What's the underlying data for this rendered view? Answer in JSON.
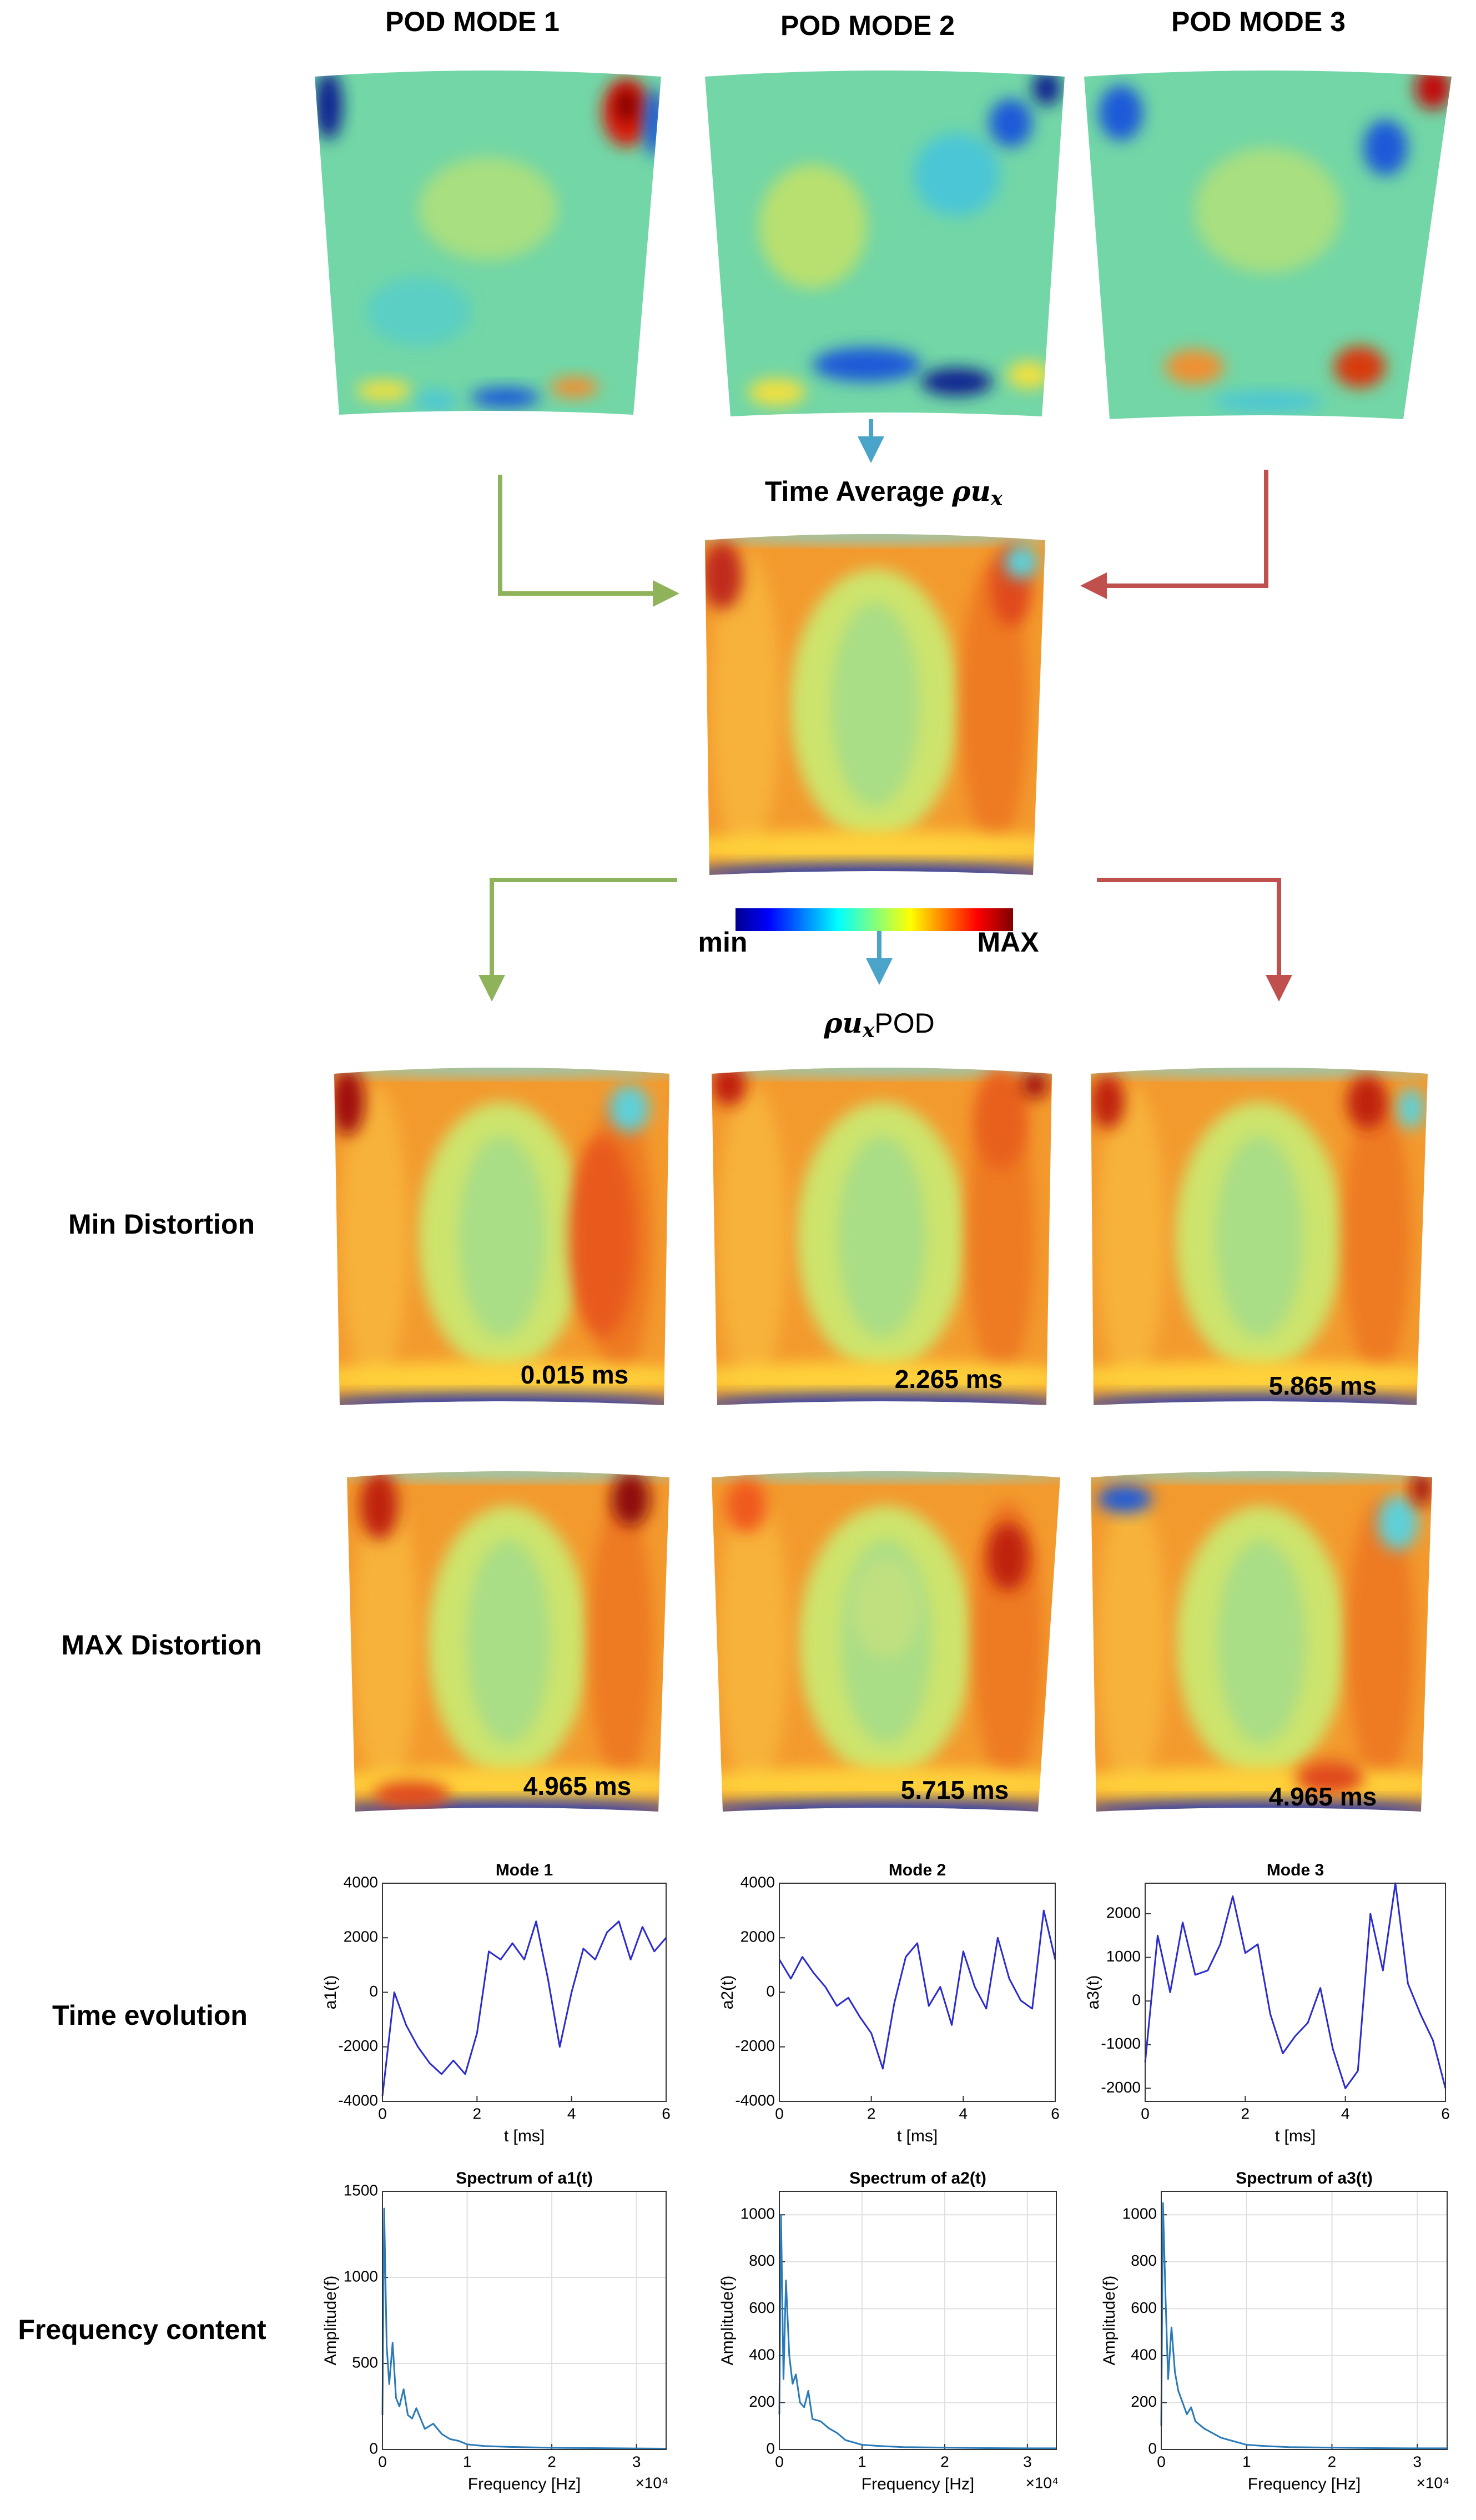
{
  "figure": {
    "top_titles": [
      "POD MODE 1",
      "POD MODE 2",
      "POD MODE 3"
    ],
    "center_title_text": "Time Average",
    "center_title_symbol": "ρu",
    "center_title_sub": "x",
    "colorbar_min": "min",
    "colorbar_max": "MAX",
    "pod_title_symbol": "ρu",
    "pod_title_sub": "x",
    "pod_title_text": "POD",
    "row_labels": [
      "Min Distortion",
      "MAX Distortion",
      "Time evolution",
      "Frequency content"
    ],
    "min_times": [
      "0.015 ms",
      "2.265 ms",
      "5.865 ms"
    ],
    "max_times": [
      "4.965 ms",
      "5.715 ms",
      "4.965 ms"
    ]
  },
  "chart_data": [
    {
      "type": "line",
      "title": "Mode 1",
      "x_label": "t [ms]",
      "y_label": "a1(t)",
      "color": "#2b2bd0",
      "grid": false,
      "x": [
        0,
        0.25,
        0.5,
        0.75,
        1,
        1.25,
        1.5,
        1.75,
        2,
        2.25,
        2.5,
        2.75,
        3,
        3.25,
        3.5,
        3.75,
        4,
        4.25,
        4.5,
        4.75,
        5,
        5.25,
        5.5,
        5.75,
        6
      ],
      "values": [
        -3800,
        0,
        -1200,
        -2000,
        -2600,
        -3000,
        -2500,
        -3000,
        -1500,
        1500,
        1200,
        1800,
        1200,
        2600,
        500,
        -2000,
        0,
        1600,
        1200,
        2200,
        2600,
        1200,
        2400,
        1500,
        2000
      ],
      "xlim": [
        0,
        6
      ],
      "xticks": [
        0,
        2,
        4,
        6
      ],
      "ylim": [
        -4000,
        4000
      ],
      "yticks": [
        -4000,
        -2000,
        0,
        2000,
        4000
      ]
    },
    {
      "type": "line",
      "title": "Mode 2",
      "x_label": "t [ms]",
      "y_label": "a2(t)",
      "color": "#2b2bd0",
      "grid": false,
      "x": [
        0,
        0.25,
        0.5,
        0.75,
        1,
        1.25,
        1.5,
        1.75,
        2,
        2.25,
        2.5,
        2.75,
        3,
        3.25,
        3.5,
        3.75,
        4,
        4.25,
        4.5,
        4.75,
        5,
        5.25,
        5.5,
        5.75,
        6
      ],
      "values": [
        1200,
        500,
        1300,
        700,
        200,
        -500,
        -200,
        -900,
        -1500,
        -2800,
        -400,
        1300,
        1800,
        -500,
        200,
        -1200,
        1500,
        200,
        -600,
        2000,
        500,
        -300,
        -600,
        3000,
        1200
      ],
      "xlim": [
        0,
        6
      ],
      "xticks": [
        0,
        2,
        4,
        6
      ],
      "ylim": [
        -4000,
        4000
      ],
      "yticks": [
        -4000,
        -2000,
        0,
        2000,
        4000
      ]
    },
    {
      "type": "line",
      "title": "Mode 3",
      "x_label": "t [ms]",
      "y_label": "a3(t)",
      "color": "#2b2bd0",
      "grid": false,
      "x": [
        0,
        0.25,
        0.5,
        0.75,
        1,
        1.25,
        1.5,
        1.75,
        2,
        2.25,
        2.5,
        2.75,
        3,
        3.25,
        3.5,
        3.75,
        4,
        4.25,
        4.5,
        4.75,
        5,
        5.25,
        5.5,
        5.75,
        6
      ],
      "values": [
        -1400,
        1500,
        200,
        1800,
        600,
        700,
        1300,
        2400,
        1100,
        1300,
        -300,
        -1200,
        -800,
        -500,
        300,
        -1100,
        -2000,
        -1600,
        2000,
        700,
        2700,
        400,
        -300,
        -900,
        -2000
      ],
      "xlim": [
        0,
        6
      ],
      "xticks": [
        0,
        2,
        4,
        6
      ],
      "ylim": [
        -2300,
        2700
      ],
      "yticks": [
        -2000,
        -1000,
        0,
        1000,
        2000
      ]
    },
    {
      "type": "line",
      "title": "Spectrum of a1(t)",
      "x_label": "Frequency [Hz]",
      "y_label": "Amplitude(f)",
      "x_multiplier": "×10⁴",
      "color": "#2a7ab8",
      "grid": true,
      "x": [
        0,
        200,
        500,
        800,
        1200,
        1600,
        2000,
        2500,
        3000,
        3500,
        4000,
        5000,
        6000,
        7000,
        8000,
        9000,
        10000,
        12000,
        15000,
        20000,
        25000,
        30000,
        33500
      ],
      "values": [
        200,
        1400,
        600,
        380,
        620,
        300,
        250,
        350,
        200,
        180,
        240,
        120,
        150,
        90,
        60,
        50,
        30,
        20,
        15,
        10,
        8,
        6,
        5
      ],
      "xlim": [
        0,
        33500
      ],
      "xticks": [
        0,
        {
          "value": 10000,
          "label": "1"
        },
        {
          "value": 20000,
          "label": "2"
        },
        {
          "value": 30000,
          "label": "3"
        }
      ],
      "ylim": [
        0,
        1500
      ],
      "yticks": [
        0,
        500,
        1000,
        1500
      ]
    },
    {
      "type": "line",
      "title": "Spectrum of a2(t)",
      "x_label": "Frequency [Hz]",
      "y_label": "Amplitude(f)",
      "x_multiplier": "×10⁴",
      "color": "#2a7ab8",
      "grid": true,
      "x": [
        0,
        200,
        500,
        800,
        1200,
        1600,
        2000,
        2500,
        3000,
        3500,
        4000,
        5000,
        6000,
        7000,
        8000,
        9000,
        10000,
        12000,
        15000,
        20000,
        25000,
        30000,
        33500
      ],
      "values": [
        150,
        1000,
        300,
        720,
        400,
        280,
        320,
        200,
        180,
        250,
        130,
        120,
        90,
        70,
        40,
        30,
        20,
        15,
        10,
        8,
        6,
        5,
        5
      ],
      "xlim": [
        0,
        33500
      ],
      "xticks": [
        0,
        {
          "value": 10000,
          "label": "1"
        },
        {
          "value": 20000,
          "label": "2"
        },
        {
          "value": 30000,
          "label": "3"
        }
      ],
      "ylim": [
        0,
        1100
      ],
      "yticks": [
        0,
        200,
        400,
        600,
        800,
        1000
      ]
    },
    {
      "type": "line",
      "title": "Spectrum of a3(t)",
      "x_label": "Frequency [Hz]",
      "y_label": "Amplitude(f)",
      "x_multiplier": "×10⁴",
      "color": "#2a7ab8",
      "grid": true,
      "x": [
        0,
        200,
        500,
        800,
        1200,
        1600,
        2000,
        2500,
        3000,
        3500,
        4000,
        5000,
        6000,
        7000,
        8000,
        9000,
        10000,
        12000,
        15000,
        20000,
        25000,
        30000,
        33500
      ],
      "values": [
        100,
        1050,
        650,
        300,
        520,
        330,
        250,
        200,
        150,
        180,
        120,
        90,
        70,
        50,
        40,
        30,
        20,
        15,
        10,
        8,
        6,
        5,
        5
      ],
      "xlim": [
        0,
        33500
      ],
      "xticks": [
        0,
        {
          "value": 10000,
          "label": "1"
        },
        {
          "value": 20000,
          "label": "2"
        },
        {
          "value": 30000,
          "label": "3"
        }
      ],
      "ylim": [
        0,
        1100
      ],
      "yticks": [
        0,
        200,
        400,
        600,
        800,
        1000
      ]
    }
  ]
}
